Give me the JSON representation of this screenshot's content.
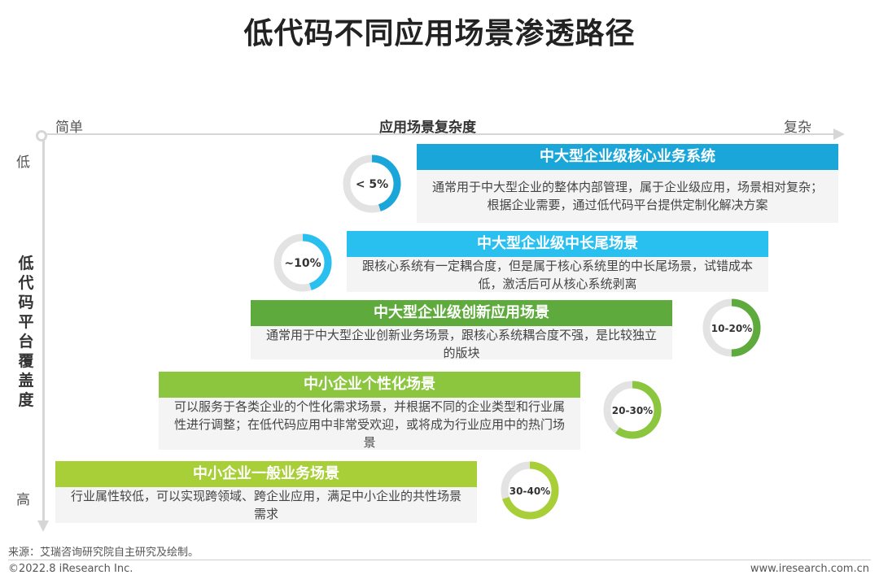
{
  "title": "低代码不同应用场景渗透路径",
  "x_axis": {
    "left": "简单",
    "center": "应用场景复杂度",
    "right": "复杂"
  },
  "y_axis": {
    "top": "低",
    "label": "低代码平台覆盖度",
    "bottom": "高"
  },
  "scenarios": [
    {
      "head": "中大型企业级核心业务系统",
      "body": "通常用于中大型企业的整体内部管理，属于企业级应用，场景相对复杂；根据企业需要，通过低代码平台提供定制化解决方案",
      "penetration": "< 5%",
      "fill": 0.45,
      "color": "#1aa6d9"
    },
    {
      "head": "中大型企业级中长尾场景",
      "body": "跟核心系统有一定耦合度，但是属于核心系统里的中长尾场景，试错成本低，激活后可从核心系统剥离",
      "penetration": "~10%",
      "fill": 0.45,
      "color": "#29bfef"
    },
    {
      "head": "中大型企业级创新应用场景",
      "body": "通常用于中大型企业创新业务场景，跟核心系统耦合度不强，是比较独立的版块",
      "penetration": "10-20%",
      "fill": 0.5,
      "color": "#5eaa3c"
    },
    {
      "head": "中小企业个性化场景",
      "body": "可以服务于各类企业的个性化需求场景，并根据不同的企业类型和行业属性进行调整；在低代码应用中非常受欢迎，或将成为行业应用中的热门场景",
      "penetration": "20-30%",
      "fill": 0.6,
      "color": "#8cc63f"
    },
    {
      "head": "中小企业一般业务场景",
      "body": "行业属性较低，可以实现跨领域、跨企业应用，满足中小企业的共性场景需求",
      "penetration": "30-40%",
      "fill": 0.7,
      "color": "#a9cf38"
    }
  ],
  "footer": {
    "source": "来源：艾瑞咨询研究院自主研究及绘制。",
    "copyright": "©2022.8 iResearch Inc.",
    "website": "www.iresearch.com.cn"
  },
  "colors": {
    "track": "#e3e3e3",
    "card_body_bg": "#f4f4f4"
  }
}
